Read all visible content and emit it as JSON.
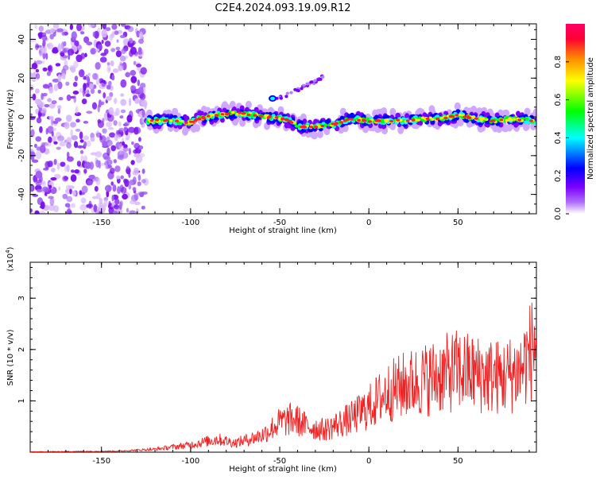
{
  "title": "C2E4.2024.093.19.09.R12",
  "chart_data": [
    {
      "type": "heatmap",
      "xlabel": "Height of straight line (km)",
      "ylabel": "Frequency (Hz)",
      "xlim": [
        -190,
        94
      ],
      "ylim": [
        -50,
        48
      ],
      "x_ticks": [
        -150,
        -100,
        -50,
        0,
        50
      ],
      "y_ticks": [
        -40,
        -20,
        0,
        20,
        40
      ],
      "colorbar": {
        "label": "Normalized spectral amplitude",
        "range": [
          0,
          1
        ],
        "ticks": [
          "0.0",
          "0.2",
          "0.4",
          "0.6",
          "0.8"
        ],
        "colors": [
          "#ffffff",
          "#7b00ff",
          "#0000ff",
          "#00ffff",
          "#00ff00",
          "#ffff00",
          "#ff8800",
          "#ff0033",
          "#ff0066"
        ]
      },
      "noise_region_x": [
        -190,
        -125
      ],
      "ridge": {
        "x": [
          -125,
          -110,
          -100,
          -95,
          -85,
          -75,
          -65,
          -55,
          -45,
          -38,
          -30,
          -20,
          -10,
          0,
          10,
          20,
          30,
          40,
          50,
          60,
          70,
          80,
          94
        ],
        "y": [
          -2,
          -2,
          -3,
          -1,
          1,
          2,
          1,
          0,
          -2,
          -5,
          -5,
          -4,
          -1,
          -2,
          -2,
          -2,
          -1,
          -1,
          1,
          -1,
          -2,
          -1,
          -2
        ]
      },
      "secondary_feature": {
        "x": [
          -52,
          -42,
          -33,
          -25
        ],
        "y": [
          9,
          13,
          17,
          21
        ]
      }
    },
    {
      "type": "line",
      "xlabel": "Height of straight line (km)",
      "ylabel": "SNR (10 * v/v)",
      "y_multiplier_label": "(x10",
      "y_multiplier_exp": "4",
      "xlim": [
        -190,
        94
      ],
      "ylim": [
        0,
        37000
      ],
      "x_ticks": [
        -150,
        -100,
        -50,
        0,
        50
      ],
      "y_ticks": [
        1,
        2,
        3
      ],
      "color": "#ee2222",
      "envelope": {
        "x": [
          -190,
          -140,
          -120,
          -100,
          -85,
          -75,
          -60,
          -50,
          -42,
          -35,
          -25,
          -10,
          0,
          10,
          20,
          35,
          50,
          60,
          75,
          85,
          94
        ],
        "y": [
          100,
          300,
          800,
          2000,
          3500,
          2500,
          4500,
          8000,
          9000,
          7000,
          6000,
          9000,
          12000,
          16000,
          18000,
          20000,
          22000,
          21000,
          20000,
          22000,
          30000
        ]
      }
    }
  ]
}
